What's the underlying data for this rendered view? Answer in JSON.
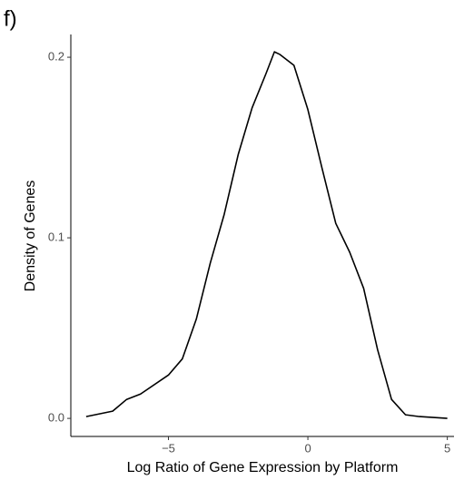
{
  "chart_data": {
    "type": "line",
    "panel_label": "f)",
    "x_label": "Log Ratio of Gene Expression by Platform",
    "y_label": "Density of Genes",
    "series": [
      {
        "name": "density",
        "color": "#000000",
        "x": [
          -7.95,
          -7,
          -6.5,
          -6,
          -5,
          -4.5,
          -4,
          -3.5,
          -3,
          -2.5,
          -2,
          -1.5,
          -1.2,
          -1,
          -0.5,
          0,
          0.5,
          1,
          1.5,
          2,
          2.5,
          3,
          3.5,
          4,
          5
        ],
        "values": [
          0.001,
          0.004,
          0.0105,
          0.0135,
          0.024,
          0.033,
          0.055,
          0.086,
          0.113,
          0.146,
          0.172,
          0.191,
          0.203,
          0.2015,
          0.1955,
          0.171,
          0.139,
          0.108,
          0.092,
          0.072,
          0.038,
          0.0105,
          0.002,
          0.001,
          0.0
        ]
      }
    ],
    "xlim": [
      -8.5,
      5.24
    ],
    "ylim": [
      -0.01,
      0.2126
    ],
    "xticks": [
      {
        "value": -5,
        "label": "−5"
      },
      0,
      5
    ],
    "yticks": [
      {
        "value": 0,
        "label": "0.0"
      },
      {
        "value": 0.1,
        "label": "0.1"
      },
      {
        "value": 0.2,
        "label": "0.2"
      }
    ]
  }
}
